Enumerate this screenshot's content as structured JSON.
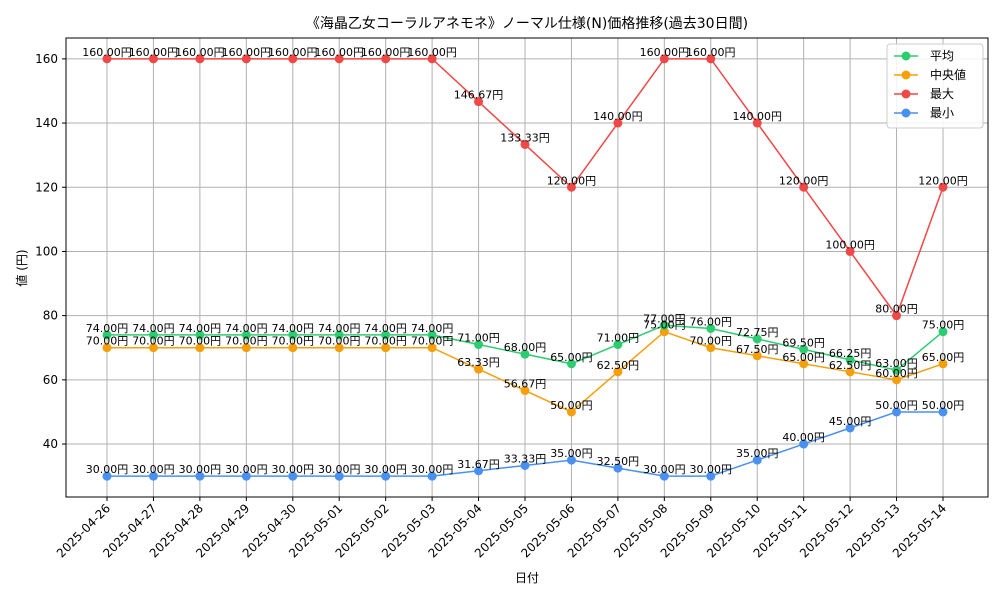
{
  "chart_data": {
    "type": "line",
    "title": "《海晶乙女コーラルアネモネ》ノーマル仕様(N)価格推移(過去30日間)",
    "xlabel": "日付",
    "ylabel": "値 (円)",
    "ylim": [
      23.5,
      166.5
    ],
    "yticks": [
      40,
      60,
      80,
      100,
      120,
      140,
      160
    ],
    "grid": true,
    "legend_position": "top-right",
    "value_suffix": "円",
    "categories": [
      "2025-04-26",
      "2025-04-27",
      "2025-04-28",
      "2025-04-29",
      "2025-04-30",
      "2025-05-01",
      "2025-05-02",
      "2025-05-03",
      "2025-05-04",
      "2025-05-05",
      "2025-05-06",
      "2025-05-07",
      "2025-05-08",
      "2025-05-09",
      "2025-05-10",
      "2025-05-11",
      "2025-05-12",
      "2025-05-13",
      "2025-05-14"
    ],
    "series": [
      {
        "name": "平均",
        "color": "#2ecc71",
        "values": [
          74.0,
          74.0,
          74.0,
          74.0,
          74.0,
          74.0,
          74.0,
          74.0,
          71.0,
          68.0,
          65.0,
          71.0,
          77.0,
          76.0,
          72.75,
          69.5,
          66.25,
          63.0,
          75.0
        ]
      },
      {
        "name": "中央値",
        "color": "#f5a00b",
        "values": [
          70.0,
          70.0,
          70.0,
          70.0,
          70.0,
          70.0,
          70.0,
          70.0,
          63.33,
          56.67,
          50.0,
          62.5,
          75.0,
          70.0,
          67.5,
          65.0,
          62.5,
          60.0,
          65.0
        ]
      },
      {
        "name": "最大",
        "color": "#f04747",
        "values": [
          160.0,
          160.0,
          160.0,
          160.0,
          160.0,
          160.0,
          160.0,
          160.0,
          146.67,
          133.33,
          120.0,
          140.0,
          160.0,
          160.0,
          140.0,
          120.0,
          100.0,
          80.0,
          120.0
        ]
      },
      {
        "name": "最小",
        "color": "#4a90f0",
        "values": [
          30.0,
          30.0,
          30.0,
          30.0,
          30.0,
          30.0,
          30.0,
          30.0,
          31.67,
          33.33,
          35.0,
          32.5,
          30.0,
          30.0,
          35.0,
          40.0,
          45.0,
          50.0,
          50.0
        ]
      }
    ]
  }
}
